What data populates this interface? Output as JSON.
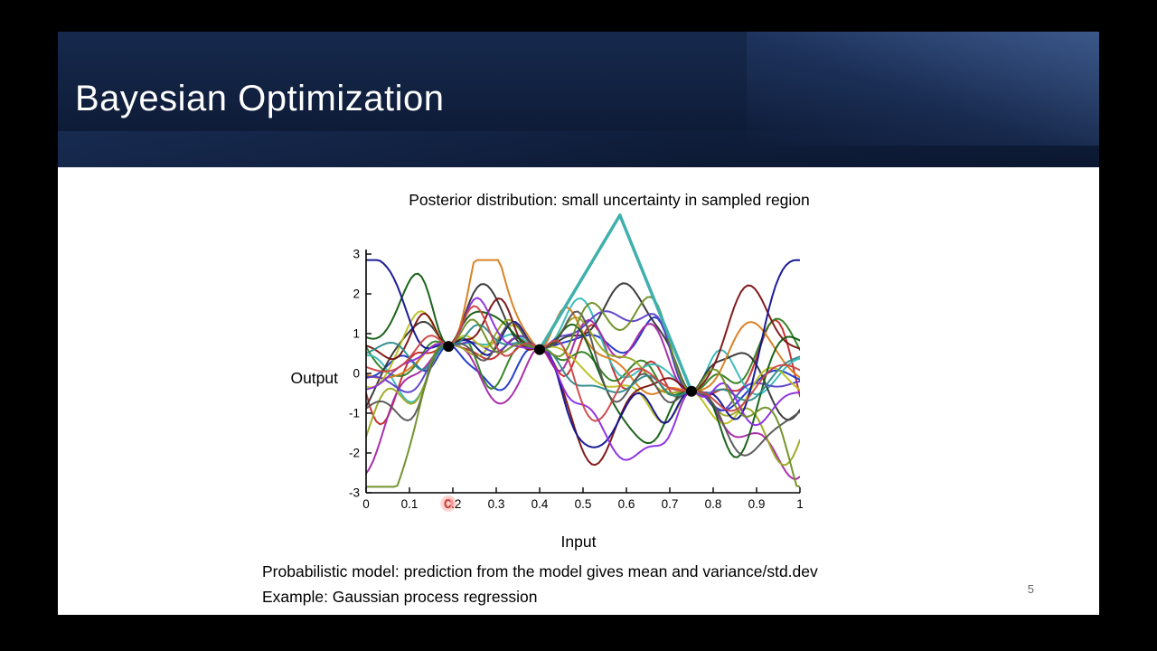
{
  "slide": {
    "title": "Bayesian Optimization",
    "footer_line1": "Probabilistic model: prediction from the model gives mean and variance/std.dev",
    "footer_line2": "Example: Gaussian process regression",
    "page_number": "5"
  },
  "colors": {
    "header_navy": "#101f3d",
    "header_accent": "#4a6aa8",
    "slide_background": "#ffffff",
    "axis": "#000000",
    "annotation_teal": "#3fb0ad",
    "laser_red": "#ff4136",
    "observed_point": "#000000"
  },
  "chart_data": {
    "type": "line",
    "title": "Posterior distribution: small uncertainty in sampled region",
    "xlabel": "Input",
    "ylabel": "Output",
    "xlim": [
      0,
      1
    ],
    "ylim": [
      -3,
      3
    ],
    "x_ticks": [
      0,
      0.1,
      0.2,
      0.3,
      0.4,
      0.5,
      0.6,
      0.7,
      0.8,
      0.9,
      1
    ],
    "y_ticks": [
      3,
      2,
      1,
      0,
      -1,
      -2,
      -3
    ],
    "grid": false,
    "legend": false,
    "n_samples": 18,
    "series_description": "random posterior sample functions of a Gaussian process, converging (small uncertainty) at the three observed points",
    "observed_points": [
      {
        "x": 0.19,
        "y": 0.68
      },
      {
        "x": 0.4,
        "y": 0.6
      },
      {
        "x": 0.75,
        "y": -0.45
      }
    ],
    "annotation": {
      "apex_x": 0.585,
      "apex_y": 4.05,
      "targets": [
        [
          0.4,
          0.6
        ],
        [
          0.75,
          -0.45
        ]
      ]
    },
    "laser_pointer": {
      "x": 0.19,
      "y": -3.27
    },
    "palette": [
      "#c62828",
      "#1a35c8",
      "#2e7d1e",
      "#35b8b8",
      "#333333",
      "#a525a5",
      "#9aa81f",
      "#d97b1a",
      "#5a3ec8",
      "#bcc020",
      "#7a1010",
      "#0f5c0f",
      "#101090",
      "#555555",
      "#2e8b8b",
      "#8a2be2",
      "#6b8e23",
      "#cc4444"
    ]
  }
}
